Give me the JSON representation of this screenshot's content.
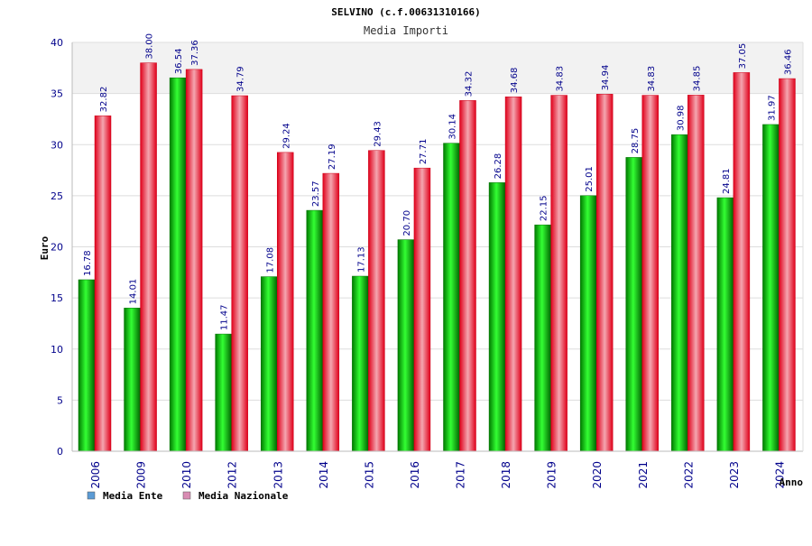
{
  "chart_data": {
    "type": "bar",
    "title": "SELVINO (c.f.00631310166)",
    "subtitle": "Media Importi",
    "xlabel": "Anno",
    "ylabel": "Euro",
    "ylim": [
      0,
      40
    ],
    "yticks": [
      0,
      5,
      10,
      15,
      20,
      25,
      30,
      35,
      40
    ],
    "grid": true,
    "legend_position": "bottom-left",
    "categories": [
      "2006",
      "2009",
      "2010",
      "2012",
      "2013",
      "2014",
      "2015",
      "2016",
      "2017",
      "2018",
      "2019",
      "2020",
      "2021",
      "2022",
      "2023",
      "2024"
    ],
    "series": [
      {
        "name": "Media Ente",
        "color": "#00c000",
        "legend_color": "#5b9bd5",
        "values": [
          16.78,
          14.01,
          36.54,
          11.47,
          17.08,
          23.57,
          17.13,
          20.7,
          30.14,
          26.28,
          22.15,
          25.01,
          28.75,
          30.98,
          24.81,
          31.97
        ],
        "labels": [
          "16.78",
          "14.01",
          "36.54",
          "11.47",
          "17.08",
          "23.57",
          "17.13",
          "20.70",
          "30.14",
          "26.28",
          "22.15",
          "25.01",
          "28.75",
          "30.98",
          "24.81",
          "31.97"
        ]
      },
      {
        "name": "Media Nazionale",
        "color": "#ff1a2e",
        "legend_color": "#d98cb3",
        "values": [
          32.82,
          38.0,
          37.36,
          34.79,
          29.24,
          27.19,
          29.43,
          27.71,
          34.32,
          34.68,
          34.83,
          34.94,
          34.83,
          34.85,
          37.05,
          36.46
        ],
        "labels": [
          "32.82",
          "38.00",
          "37.36",
          "34.79",
          "29.24",
          "27.19",
          "29.43",
          "27.71",
          "34.32",
          "34.68",
          "34.83",
          "34.94",
          "34.83",
          "34.85",
          "37.05",
          "36.46"
        ]
      }
    ]
  }
}
